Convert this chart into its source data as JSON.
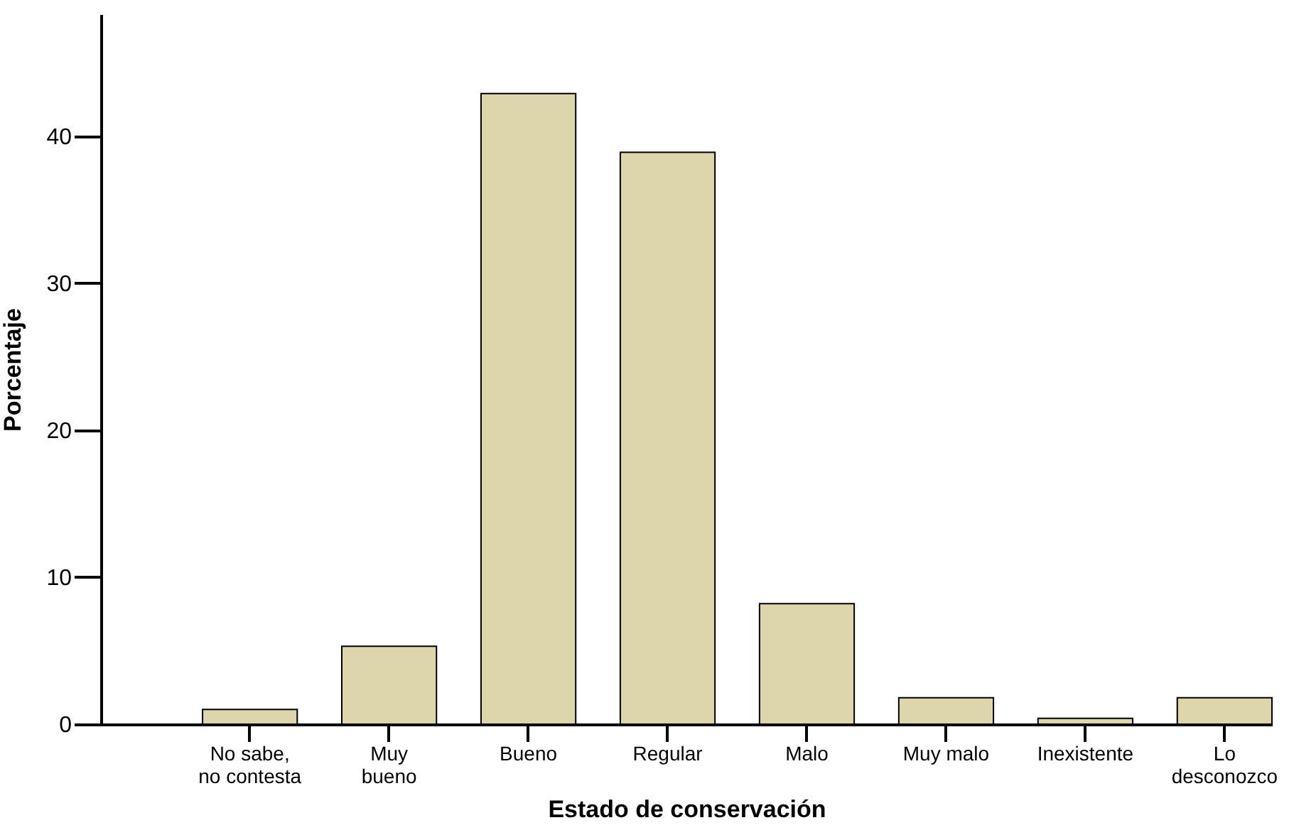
{
  "chart_data": {
    "type": "bar",
    "xlabel": "Estado de conservación",
    "ylabel": "Porcentaje",
    "categories": [
      "No sabe,\nno contesta",
      "Muy\nbueno",
      "Bueno",
      "Regular",
      "Malo",
      "Muy malo",
      "Inexistente",
      "Lo\ndesconozco"
    ],
    "values": [
      1.0,
      5.3,
      42.9,
      38.9,
      8.2,
      1.8,
      0.4,
      1.8
    ],
    "color": "#ddd5ab",
    "ylim": [
      0,
      48.3
    ],
    "yticks": [
      0,
      10,
      20,
      30,
      40
    ],
    "grid": false
  }
}
